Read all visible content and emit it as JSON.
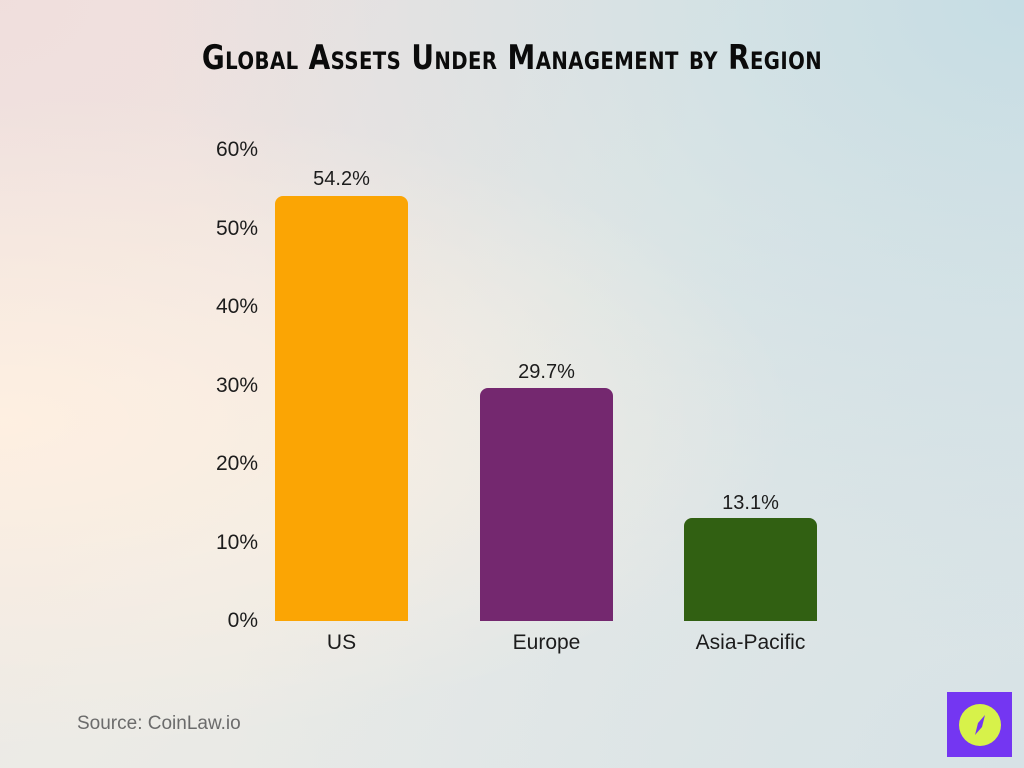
{
  "title": "Global Assets Under Management by Region",
  "source": "Source: CoinLaw.io",
  "logo": {
    "icon": "compass-icon",
    "bg_color": "#7436f2",
    "circle_color": "#d7f24a"
  },
  "y_ticks": [
    "60%",
    "50%",
    "40%",
    "30%",
    "20%",
    "10%",
    "0%"
  ],
  "bars": [
    {
      "label": "US",
      "value": 54.2,
      "display": "54.2%",
      "color": "#fba504"
    },
    {
      "label": "Europe",
      "value": 29.7,
      "display": "29.7%",
      "color": "#74286f"
    },
    {
      "label": "Asia-Pacific",
      "value": 13.1,
      "display": "13.1%",
      "color": "#316012"
    }
  ],
  "chart_data": {
    "type": "bar",
    "title": "Global Assets Under Management by Region",
    "categories": [
      "US",
      "Europe",
      "Asia-Pacific"
    ],
    "values": [
      54.2,
      29.7,
      13.1
    ],
    "data_labels": [
      "54.2%",
      "29.7%",
      "13.1%"
    ],
    "colors": [
      "#fba504",
      "#74286f",
      "#316012"
    ],
    "xlabel": "",
    "ylabel": "",
    "yticks": [
      "0%",
      "10%",
      "20%",
      "30%",
      "40%",
      "50%",
      "60%"
    ],
    "ylim": [
      0,
      60
    ],
    "grid": false,
    "legend": null,
    "annotations": [
      "Source: CoinLaw.io"
    ]
  }
}
